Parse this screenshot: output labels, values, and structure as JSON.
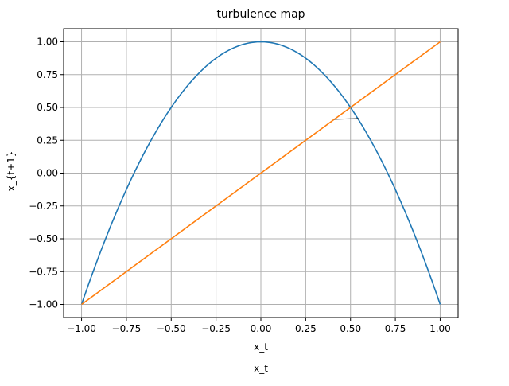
{
  "chart_data": {
    "type": "line",
    "title": "turbulence map",
    "xlabel": "x_t",
    "ylabel": "x_{t+1}",
    "bottom_label": "x_t",
    "xlim": [
      -1.1,
      1.1
    ],
    "ylim": [
      -1.1,
      1.1
    ],
    "grid": true,
    "x_ticks": [
      -1.0,
      -0.75,
      -0.5,
      -0.25,
      0.0,
      0.25,
      0.5,
      0.75,
      1.0
    ],
    "y_ticks": [
      -1.0,
      -0.75,
      -0.5,
      -0.25,
      0.0,
      0.25,
      0.5,
      0.75,
      1.0
    ],
    "x_tick_labels": [
      "−1.00",
      "−0.75",
      "−0.50",
      "−0.25",
      "0.00",
      "0.25",
      "0.50",
      "0.75",
      "1.00"
    ],
    "y_tick_labels": [
      "−1.00",
      "−0.75",
      "−0.50",
      "−0.25",
      "0.00",
      "0.25",
      "0.50",
      "0.75",
      "1.00"
    ],
    "series": [
      {
        "color": "#1f77b4",
        "x": [
          -1.0,
          -0.9,
          -0.8,
          -0.7,
          -0.6,
          -0.5,
          -0.4,
          -0.3,
          -0.2,
          -0.1,
          0.0,
          0.1,
          0.2,
          0.3,
          0.4,
          0.5,
          0.6,
          0.7,
          0.8,
          0.9,
          1.0
        ],
        "y": [
          -1.0,
          -0.62,
          -0.28,
          0.02,
          0.28,
          0.5,
          0.68,
          0.82,
          0.92,
          0.98,
          1.0,
          0.98,
          0.92,
          0.82,
          0.68,
          0.5,
          0.28,
          0.02,
          -0.28,
          -0.62,
          -1.0
        ]
      },
      {
        "color": "#ff7f0e",
        "x": [
          -1.0,
          1.0
        ],
        "y": [
          -1.0,
          1.0
        ]
      },
      {
        "color": "#000000",
        "x": [
          0.41,
          0.545
        ],
        "y": [
          0.41,
          0.415
        ]
      }
    ]
  }
}
